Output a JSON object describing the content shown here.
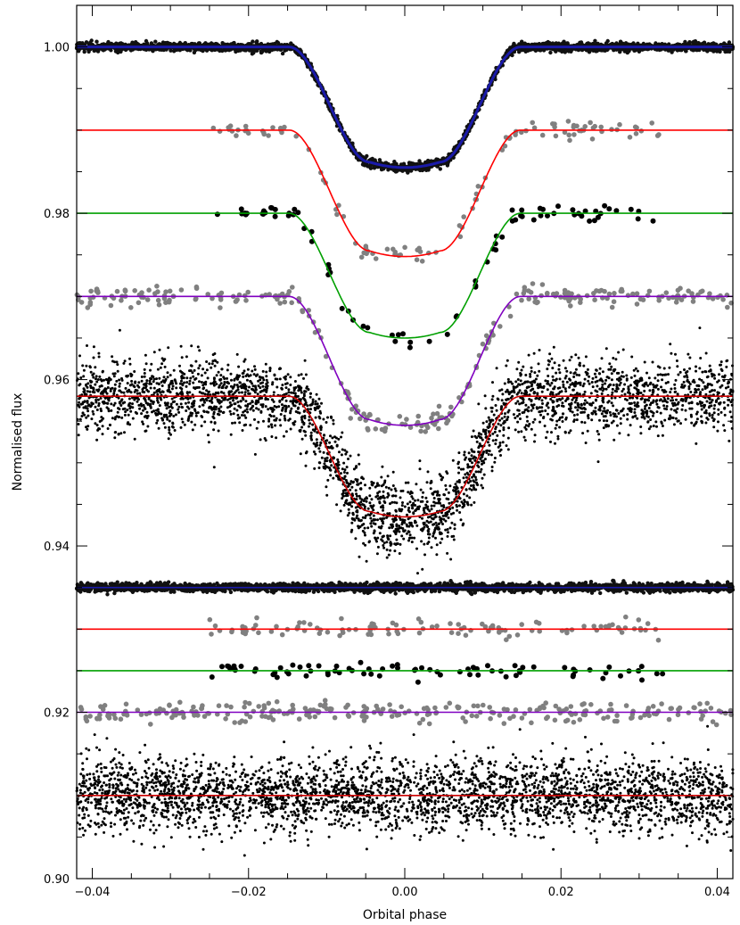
{
  "chart_data": {
    "type": "scatter",
    "title": "",
    "xlabel": "Orbital phase",
    "ylabel": "Normalised flux",
    "xlim": [
      -0.042,
      0.042
    ],
    "ylim": [
      0.9,
      1.005
    ],
    "x_ticks": [
      -0.04,
      -0.02,
      0.0,
      0.02,
      0.04
    ],
    "x_tick_labels": [
      "−0.04",
      "−0.02",
      "0.00",
      "0.02",
      "0.04"
    ],
    "y_ticks": [
      0.9,
      0.92,
      0.94,
      0.96,
      0.98,
      1.0
    ],
    "y_tick_labels": [
      "0.90",
      "0.92",
      "0.94",
      "0.96",
      "0.98",
      "1.00"
    ],
    "grid": false,
    "legend": "none",
    "transit_model": {
      "t1_phase": 0.0148,
      "t2_phase": 0.0045,
      "profile_points": [
        [
          0.0,
          1.0
        ],
        [
          0.5,
          0.96
        ],
        [
          0.75,
          0.9
        ],
        [
          1.0,
          0.82
        ]
      ]
    },
    "series": [
      {
        "kind": "lightcurve",
        "baseline": 1.0,
        "depth": 0.0145,
        "model_color": "#1a1aa8",
        "point_color": "#111111",
        "x_range": [
          -0.042,
          0.042
        ],
        "count": 2400,
        "scatter": 0.00025,
        "point_size": 2.2
      },
      {
        "kind": "lightcurve",
        "baseline": 0.99,
        "depth": 0.0152,
        "model_color": "#ff0000",
        "point_color": "#808080",
        "x_range": [
          -0.025,
          0.033
        ],
        "count": 110,
        "scatter": 0.0005,
        "point_size": 2.8
      },
      {
        "kind": "lightcurve",
        "baseline": 0.98,
        "depth": 0.015,
        "model_color": "#00a000",
        "point_color": "#000000",
        "x_range": [
          -0.025,
          0.033
        ],
        "count": 80,
        "scatter": 0.0005,
        "point_size": 3.0
      },
      {
        "kind": "lightcurve",
        "baseline": 0.97,
        "depth": 0.0155,
        "model_color": "#8000c0",
        "point_color": "#808080",
        "x_range": [
          -0.042,
          0.042
        ],
        "count": 270,
        "scatter": 0.0006,
        "point_size": 2.8
      },
      {
        "kind": "lightcurve",
        "baseline": 0.958,
        "depth": 0.0145,
        "model_color": "#cc0000",
        "point_color": "#000000",
        "x_range": [
          -0.042,
          0.042
        ],
        "count": 3200,
        "scatter": 0.0022,
        "point_size": 1.5
      },
      {
        "kind": "residuals",
        "baseline": 0.935,
        "model_color": "#1a1aa8",
        "point_color": "#111111",
        "x_range": [
          -0.042,
          0.042
        ],
        "count": 2400,
        "scatter": 0.00025,
        "point_size": 2.2
      },
      {
        "kind": "residuals",
        "baseline": 0.93,
        "model_color": "#ff0000",
        "point_color": "#808080",
        "x_range": [
          -0.025,
          0.033
        ],
        "count": 110,
        "scatter": 0.0005,
        "point_size": 2.8
      },
      {
        "kind": "residuals",
        "baseline": 0.925,
        "model_color": "#00a000",
        "point_color": "#000000",
        "x_range": [
          -0.025,
          0.033
        ],
        "count": 80,
        "scatter": 0.0005,
        "point_size": 3.0
      },
      {
        "kind": "residuals",
        "baseline": 0.92,
        "model_color": "#8000c0",
        "point_color": "#808080",
        "x_range": [
          -0.042,
          0.042
        ],
        "count": 270,
        "scatter": 0.0006,
        "point_size": 2.8
      },
      {
        "kind": "residuals",
        "baseline": 0.91,
        "model_color": "#cc0000",
        "point_color": "#000000",
        "x_range": [
          -0.042,
          0.042
        ],
        "count": 3200,
        "scatter": 0.0022,
        "point_size": 1.5
      }
    ]
  }
}
